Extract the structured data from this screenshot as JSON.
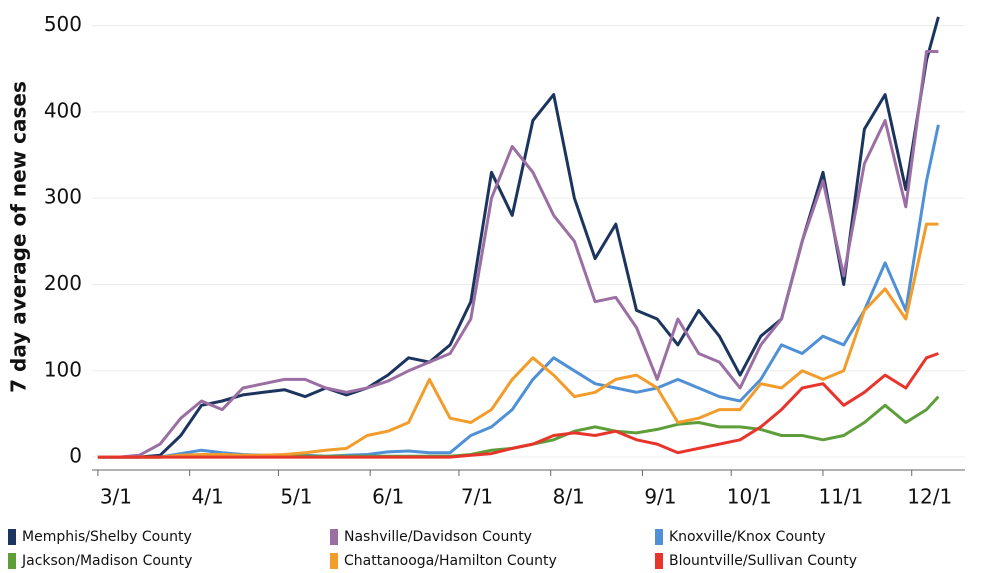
{
  "chart_data": {
    "type": "line",
    "y_label": "7 day average of new cases",
    "x": [
      "3/1",
      "3/8",
      "3/15",
      "3/22",
      "3/29",
      "4/5",
      "4/12",
      "4/19",
      "4/26",
      "5/3",
      "5/10",
      "5/17",
      "5/24",
      "5/31",
      "6/7",
      "6/14",
      "6/21",
      "6/28",
      "7/5",
      "7/12",
      "7/19",
      "7/26",
      "8/2",
      "8/9",
      "8/16",
      "8/23",
      "8/30",
      "9/6",
      "9/13",
      "9/20",
      "9/27",
      "10/4",
      "10/11",
      "10/18",
      "10/25",
      "11/1",
      "11/8",
      "11/15",
      "11/22",
      "11/29",
      "12/6",
      "12/10"
    ],
    "xlim": [
      "2/28",
      "12/19"
    ],
    "xticks": [
      "3/1",
      "4/1",
      "5/1",
      "6/1",
      "7/1",
      "8/1",
      "9/1",
      "10/1",
      "11/1",
      "12/1"
    ],
    "ylim": [
      -15,
      525
    ],
    "yticks": [
      0,
      100,
      200,
      300,
      400,
      500
    ],
    "grid": true,
    "legend": "bottom",
    "series": [
      {
        "name": "Memphis/Shelby County",
        "color": "#1c355e",
        "values": [
          0,
          0,
          0,
          2,
          25,
          60,
          65,
          72,
          75,
          78,
          70,
          80,
          72,
          80,
          95,
          115,
          110,
          130,
          180,
          330,
          280,
          390,
          420,
          300,
          230,
          270,
          170,
          160,
          130,
          170,
          140,
          95,
          140,
          160,
          250,
          330,
          200,
          380,
          420,
          310,
          460,
          510
        ]
      },
      {
        "name": "Nashville/Davidson County",
        "color": "#9c6fa4",
        "values": [
          0,
          0,
          2,
          15,
          45,
          65,
          55,
          80,
          85,
          90,
          90,
          80,
          75,
          80,
          88,
          100,
          110,
          120,
          160,
          300,
          360,
          330,
          280,
          250,
          180,
          185,
          150,
          90,
          160,
          120,
          110,
          80,
          130,
          160,
          250,
          320,
          210,
          340,
          390,
          290,
          470,
          470
        ]
      },
      {
        "name": "Knoxville/Knox County",
        "color": "#4f90d6",
        "values": [
          0,
          0,
          0,
          0,
          4,
          8,
          5,
          3,
          2,
          2,
          2,
          1,
          2,
          3,
          6,
          7,
          5,
          5,
          25,
          35,
          55,
          90,
          115,
          100,
          85,
          80,
          75,
          80,
          90,
          80,
          70,
          65,
          90,
          130,
          120,
          140,
          130,
          170,
          225,
          170,
          320,
          385
        ]
      },
      {
        "name": "Jackson/Madison County",
        "color": "#5e9e3a",
        "values": [
          0,
          0,
          0,
          0,
          1,
          2,
          2,
          2,
          1,
          1,
          1,
          1,
          1,
          1,
          1,
          1,
          1,
          1,
          3,
          8,
          10,
          15,
          20,
          30,
          35,
          30,
          28,
          32,
          38,
          40,
          35,
          35,
          32,
          25,
          25,
          20,
          25,
          40,
          60,
          40,
          55,
          70
        ]
      },
      {
        "name": "Chattanooga/Hamilton County",
        "color": "#f29d2b",
        "values": [
          0,
          0,
          0,
          0,
          2,
          3,
          3,
          2,
          2,
          3,
          5,
          8,
          10,
          25,
          30,
          40,
          90,
          45,
          40,
          55,
          90,
          115,
          95,
          70,
          75,
          90,
          95,
          80,
          40,
          45,
          55,
          55,
          85,
          80,
          100,
          90,
          100,
          170,
          195,
          160,
          270,
          270
        ]
      },
      {
        "name": "Blountville/Sullivan County",
        "color": "#e8352c",
        "values": [
          0,
          0,
          0,
          0,
          0,
          0,
          0,
          0,
          0,
          0,
          0,
          0,
          0,
          0,
          0,
          0,
          0,
          0,
          2,
          4,
          10,
          15,
          25,
          28,
          25,
          30,
          20,
          15,
          5,
          10,
          15,
          20,
          35,
          55,
          80,
          85,
          60,
          75,
          95,
          80,
          115,
          120
        ]
      }
    ]
  }
}
